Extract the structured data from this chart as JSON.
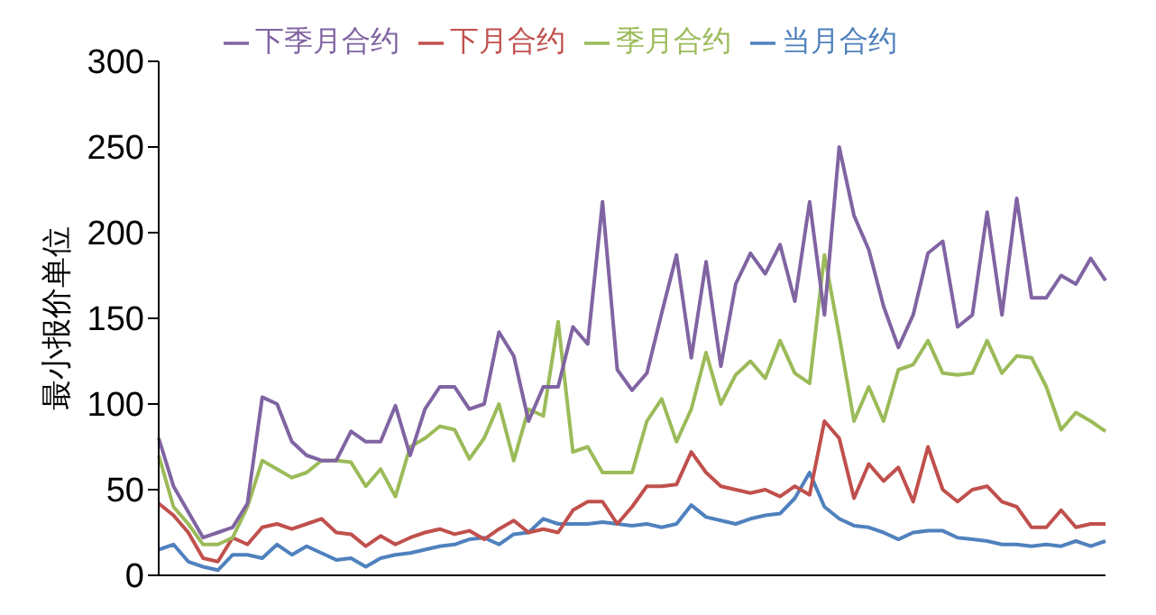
{
  "chart_data": {
    "type": "line",
    "ylabel": "最小报价单位",
    "categories": [
      null,
      null,
      null,
      null,
      null,
      null,
      null,
      null,
      null,
      null,
      null,
      null,
      null,
      null,
      null,
      null,
      null,
      null,
      null,
      null,
      null,
      null,
      null,
      null,
      null,
      null,
      null,
      null,
      null,
      null,
      null,
      null,
      null,
      null,
      null,
      null,
      null,
      null,
      null,
      null,
      null,
      null,
      null,
      null,
      null,
      null,
      null,
      null,
      null,
      null,
      null,
      null,
      null,
      null,
      null,
      null,
      null,
      null,
      null,
      null,
      null,
      null,
      null,
      null,
      null
    ],
    "series": [
      {
        "name": "当月合约",
        "color": "#4f81bd",
        "values": [
          15,
          18,
          8,
          5,
          3,
          12,
          12,
          10,
          18,
          12,
          17,
          13,
          9,
          10,
          5,
          10,
          12,
          13,
          15,
          17,
          18,
          21,
          22,
          18,
          24,
          25,
          33,
          30,
          30,
          30,
          31,
          30,
          29,
          30,
          28,
          30,
          41,
          34,
          32,
          30,
          33,
          35,
          36,
          45,
          60,
          40,
          33,
          29,
          28,
          25,
          21,
          25,
          26,
          26,
          22,
          21,
          20,
          18,
          18,
          17,
          18,
          17,
          20,
          17,
          20
        ]
      },
      {
        "name": "下月合约",
        "color": "#c0504d",
        "values": [
          42,
          35,
          25,
          10,
          8,
          22,
          18,
          28,
          30,
          27,
          30,
          33,
          25,
          24,
          17,
          23,
          18,
          22,
          25,
          27,
          24,
          26,
          21,
          27,
          32,
          25,
          27,
          25,
          38,
          43,
          43,
          30,
          40,
          52,
          52,
          53,
          72,
          60,
          52,
          50,
          48,
          50,
          46,
          52,
          47,
          90,
          80,
          45,
          65,
          55,
          63,
          43,
          75,
          50,
          43,
          50,
          52,
          43,
          40,
          28,
          28,
          38,
          28,
          30,
          30
        ]
      },
      {
        "name": "季月合约",
        "color": "#9bbb59",
        "values": [
          70,
          40,
          30,
          18,
          18,
          22,
          40,
          67,
          62,
          57,
          60,
          67,
          67,
          66,
          52,
          62,
          46,
          75,
          80,
          87,
          85,
          68,
          80,
          100,
          67,
          97,
          93,
          148,
          72,
          75,
          60,
          60,
          60,
          90,
          103,
          78,
          97,
          130,
          100,
          117,
          125,
          115,
          137,
          118,
          112,
          187,
          140,
          90,
          110,
          90,
          120,
          123,
          137,
          118,
          117,
          118,
          137,
          118,
          128,
          127,
          110,
          85,
          95,
          90,
          84
        ]
      },
      {
        "name": "下季月合约",
        "color": "#8064a2",
        "values": [
          80,
          52,
          37,
          22,
          25,
          28,
          42,
          104,
          100,
          78,
          70,
          67,
          67,
          84,
          78,
          78,
          99,
          70,
          97,
          110,
          110,
          97,
          100,
          142,
          128,
          90,
          110,
          110,
          145,
          135,
          218,
          120,
          108,
          118,
          153,
          187,
          127,
          183,
          122,
          170,
          188,
          176,
          193,
          160,
          218,
          152,
          250,
          210,
          190,
          157,
          133,
          152,
          188,
          195,
          145,
          152,
          212,
          152,
          220,
          162,
          162,
          175,
          170,
          185,
          172
        ]
      }
    ],
    "ylim": [
      0,
      300
    ],
    "yticks": [
      0,
      50,
      100,
      150,
      200,
      250,
      300
    ],
    "legend": "top",
    "grid": false,
    "marker": "none",
    "line_style": "solid"
  }
}
